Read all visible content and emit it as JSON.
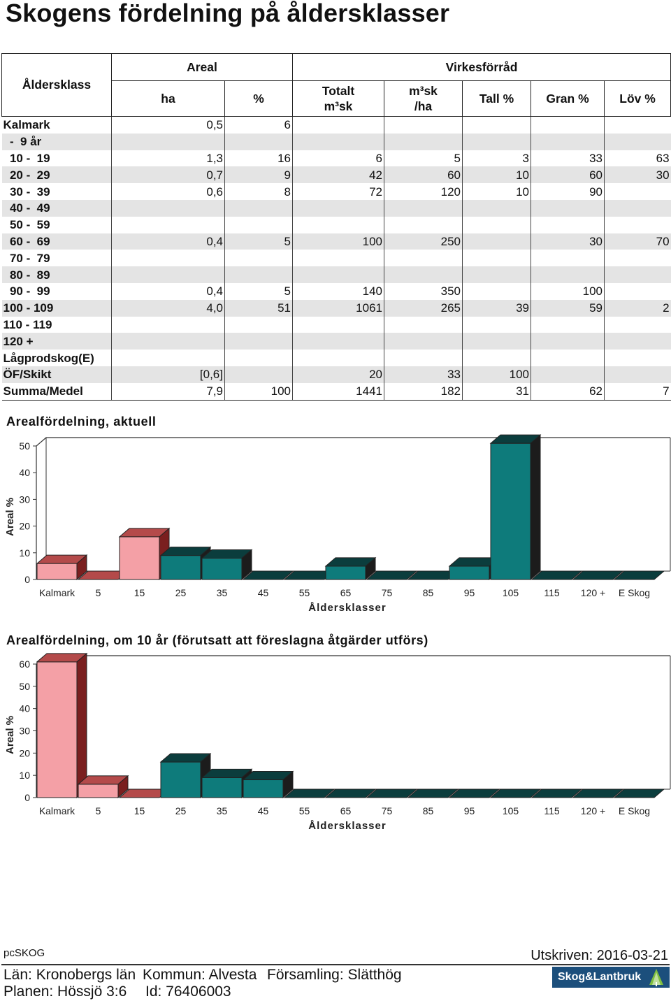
{
  "page": {
    "title": "Skogens fördelning på åldersklasser"
  },
  "table": {
    "headers": {
      "aldersklass": "Åldersklass",
      "areal": "Areal",
      "virkesforrad": "Virkesförråd",
      "ha": "ha",
      "pct": "%",
      "totalt_line1": "Totalt",
      "totalt_line2": "m³sk",
      "msk_line1": "m³sk",
      "msk_line2": "/ha",
      "tall": "Tall %",
      "gran": "Gran %",
      "lov": "Löv %"
    },
    "rows": [
      {
        "label": "Kalmark",
        "ha": "0,5",
        "pct": "6",
        "totalt": "",
        "mskha": "",
        "tall": "",
        "gran": "",
        "lov": ""
      },
      {
        "label": "  -  9 år",
        "ha": "",
        "pct": "",
        "totalt": "",
        "mskha": "",
        "tall": "",
        "gran": "",
        "lov": ""
      },
      {
        "label": "  10 -  19",
        "ha": "1,3",
        "pct": "16",
        "totalt": "6",
        "mskha": "5",
        "tall": "3",
        "gran": "33",
        "lov": "63"
      },
      {
        "label": "  20 -  29",
        "ha": "0,7",
        "pct": "9",
        "totalt": "42",
        "mskha": "60",
        "tall": "10",
        "gran": "60",
        "lov": "30"
      },
      {
        "label": "  30 -  39",
        "ha": "0,6",
        "pct": "8",
        "totalt": "72",
        "mskha": "120",
        "tall": "10",
        "gran": "90",
        "lov": ""
      },
      {
        "label": "  40 -  49",
        "ha": "",
        "pct": "",
        "totalt": "",
        "mskha": "",
        "tall": "",
        "gran": "",
        "lov": ""
      },
      {
        "label": "  50 -  59",
        "ha": "",
        "pct": "",
        "totalt": "",
        "mskha": "",
        "tall": "",
        "gran": "",
        "lov": ""
      },
      {
        "label": "  60 -  69",
        "ha": "0,4",
        "pct": "5",
        "totalt": "100",
        "mskha": "250",
        "tall": "",
        "gran": "30",
        "lov": "70"
      },
      {
        "label": "  70 -  79",
        "ha": "",
        "pct": "",
        "totalt": "",
        "mskha": "",
        "tall": "",
        "gran": "",
        "lov": ""
      },
      {
        "label": "  80 -  89",
        "ha": "",
        "pct": "",
        "totalt": "",
        "mskha": "",
        "tall": "",
        "gran": "",
        "lov": ""
      },
      {
        "label": "  90 -  99",
        "ha": "0,4",
        "pct": "5",
        "totalt": "140",
        "mskha": "350",
        "tall": "",
        "gran": "100",
        "lov": ""
      },
      {
        "label": "100 - 109",
        "ha": "4,0",
        "pct": "51",
        "totalt": "1061",
        "mskha": "265",
        "tall": "39",
        "gran": "59",
        "lov": "2"
      },
      {
        "label": "110 - 119",
        "ha": "",
        "pct": "",
        "totalt": "",
        "mskha": "",
        "tall": "",
        "gran": "",
        "lov": ""
      },
      {
        "label": "120 +",
        "ha": "",
        "pct": "",
        "totalt": "",
        "mskha": "",
        "tall": "",
        "gran": "",
        "lov": ""
      },
      {
        "label": "Lågprodskog(E)",
        "ha": "",
        "pct": "",
        "totalt": "",
        "mskha": "",
        "tall": "",
        "gran": "",
        "lov": ""
      },
      {
        "label": "ÖF/Skikt",
        "ha": "[0,6]",
        "pct": "",
        "totalt": "20",
        "mskha": "33",
        "tall": "100",
        "gran": "",
        "lov": ""
      },
      {
        "label": "Summa/Medel",
        "ha": "7,9",
        "pct": "100",
        "totalt": "1441",
        "mskha": "182",
        "tall": "31",
        "gran": "62",
        "lov": "7"
      }
    ]
  },
  "chart_data": [
    {
      "type": "bar",
      "title": "Arealfördelning, aktuell",
      "xlabel": "Åldersklasser",
      "ylabel": "Areal %",
      "ylim": [
        0,
        50
      ],
      "yticks": [
        0,
        10,
        20,
        30,
        40,
        50
      ],
      "grid": false,
      "categories": [
        "Kalmark",
        "5",
        "15",
        "25",
        "35",
        "45",
        "55",
        "65",
        "75",
        "85",
        "95",
        "105",
        "115",
        "120 +",
        "E Skog"
      ],
      "values": [
        6,
        0,
        16,
        9,
        8,
        0,
        0,
        5,
        0,
        0,
        5,
        51,
        0,
        0,
        0
      ],
      "colors": {
        "young_front": "#f4a0a6",
        "young_top": "#b44a4a",
        "young_side": "#7a1f1f",
        "old_front": "#0e7b7b",
        "old_top": "#0b3d3d",
        "old_side": "#1c1c1c"
      }
    },
    {
      "type": "bar",
      "title": "Arealfördelning, om 10 år (förutsatt att föreslagna åtgärder utförs)",
      "xlabel": "Åldersklasser",
      "ylabel": "Areal %",
      "ylim": [
        0,
        60
      ],
      "yticks": [
        0,
        10,
        20,
        30,
        40,
        50,
        60
      ],
      "grid": false,
      "categories": [
        "Kalmark",
        "5",
        "15",
        "25",
        "35",
        "45",
        "55",
        "65",
        "75",
        "85",
        "95",
        "105",
        "115",
        "120 +",
        "E Skog"
      ],
      "values": [
        61,
        6,
        0,
        16,
        9,
        8,
        0,
        0,
        0,
        0,
        0,
        0,
        0,
        0,
        0
      ],
      "colors": {
        "young_front": "#f4a0a6",
        "young_top": "#b44a4a",
        "young_side": "#7a1f1f",
        "old_front": "#0e7b7b",
        "old_top": "#0b3d3d",
        "old_side": "#1c1c1c"
      }
    }
  ],
  "footer": {
    "software": "pcSKOG",
    "printed": "Utskriven: 2016-03-21",
    "lan": "Län: Kronobergs län",
    "kommun": "Kommun: Alvesta",
    "forsamling": "Församling: Slätthög",
    "planen": "Planen: Hössjö 3:6",
    "id": "Id: 76406003",
    "logo_text": "Skog&Lantbruk"
  }
}
